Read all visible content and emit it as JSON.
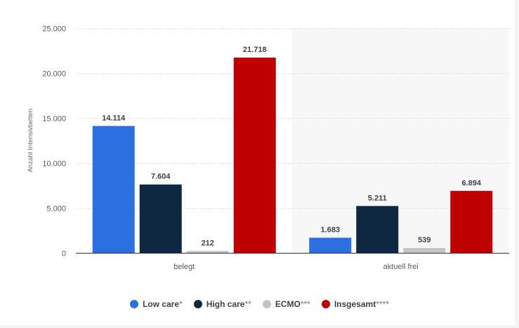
{
  "chart_data": {
    "type": "bar",
    "categories": [
      "belegt",
      "aktuell frei"
    ],
    "series": [
      {
        "name": "Low care*",
        "legend_label": "Low care",
        "legend_mark": "*",
        "color": "#2b6fe0",
        "values": [
          14114,
          1683
        ],
        "labels": [
          "14.114",
          "1.683"
        ]
      },
      {
        "name": "High care**",
        "legend_label": "High care",
        "legend_mark": "**",
        "color": "#0d2840",
        "values": [
          7604,
          5211
        ],
        "labels": [
          "7.604",
          "5.211"
        ]
      },
      {
        "name": "ECMO***",
        "legend_label": "ECMO",
        "legend_mark": "***",
        "color": "#c4c4c4",
        "values": [
          212,
          539
        ],
        "labels": [
          "212",
          "539"
        ]
      },
      {
        "name": "Insgesamt****",
        "legend_label": "Insgesamt",
        "legend_mark": "****",
        "color": "#c00000",
        "values": [
          21718,
          6894
        ],
        "labels": [
          "21.718",
          "6.894"
        ]
      }
    ],
    "ylabel": "Anzahl Intensivbetten",
    "xlabel": "",
    "ylim": [
      0,
      25000
    ],
    "yticks": [
      {
        "value": 0,
        "label": "0"
      },
      {
        "value": 5000,
        "label": "5.000"
      },
      {
        "value": 10000,
        "label": "10.000"
      },
      {
        "value": 15000,
        "label": "15.000"
      },
      {
        "value": 20000,
        "label": "20.000"
      },
      {
        "value": 25000,
        "label": "25.000"
      }
    ],
    "grid": true,
    "legend_position": "bottom-center"
  }
}
